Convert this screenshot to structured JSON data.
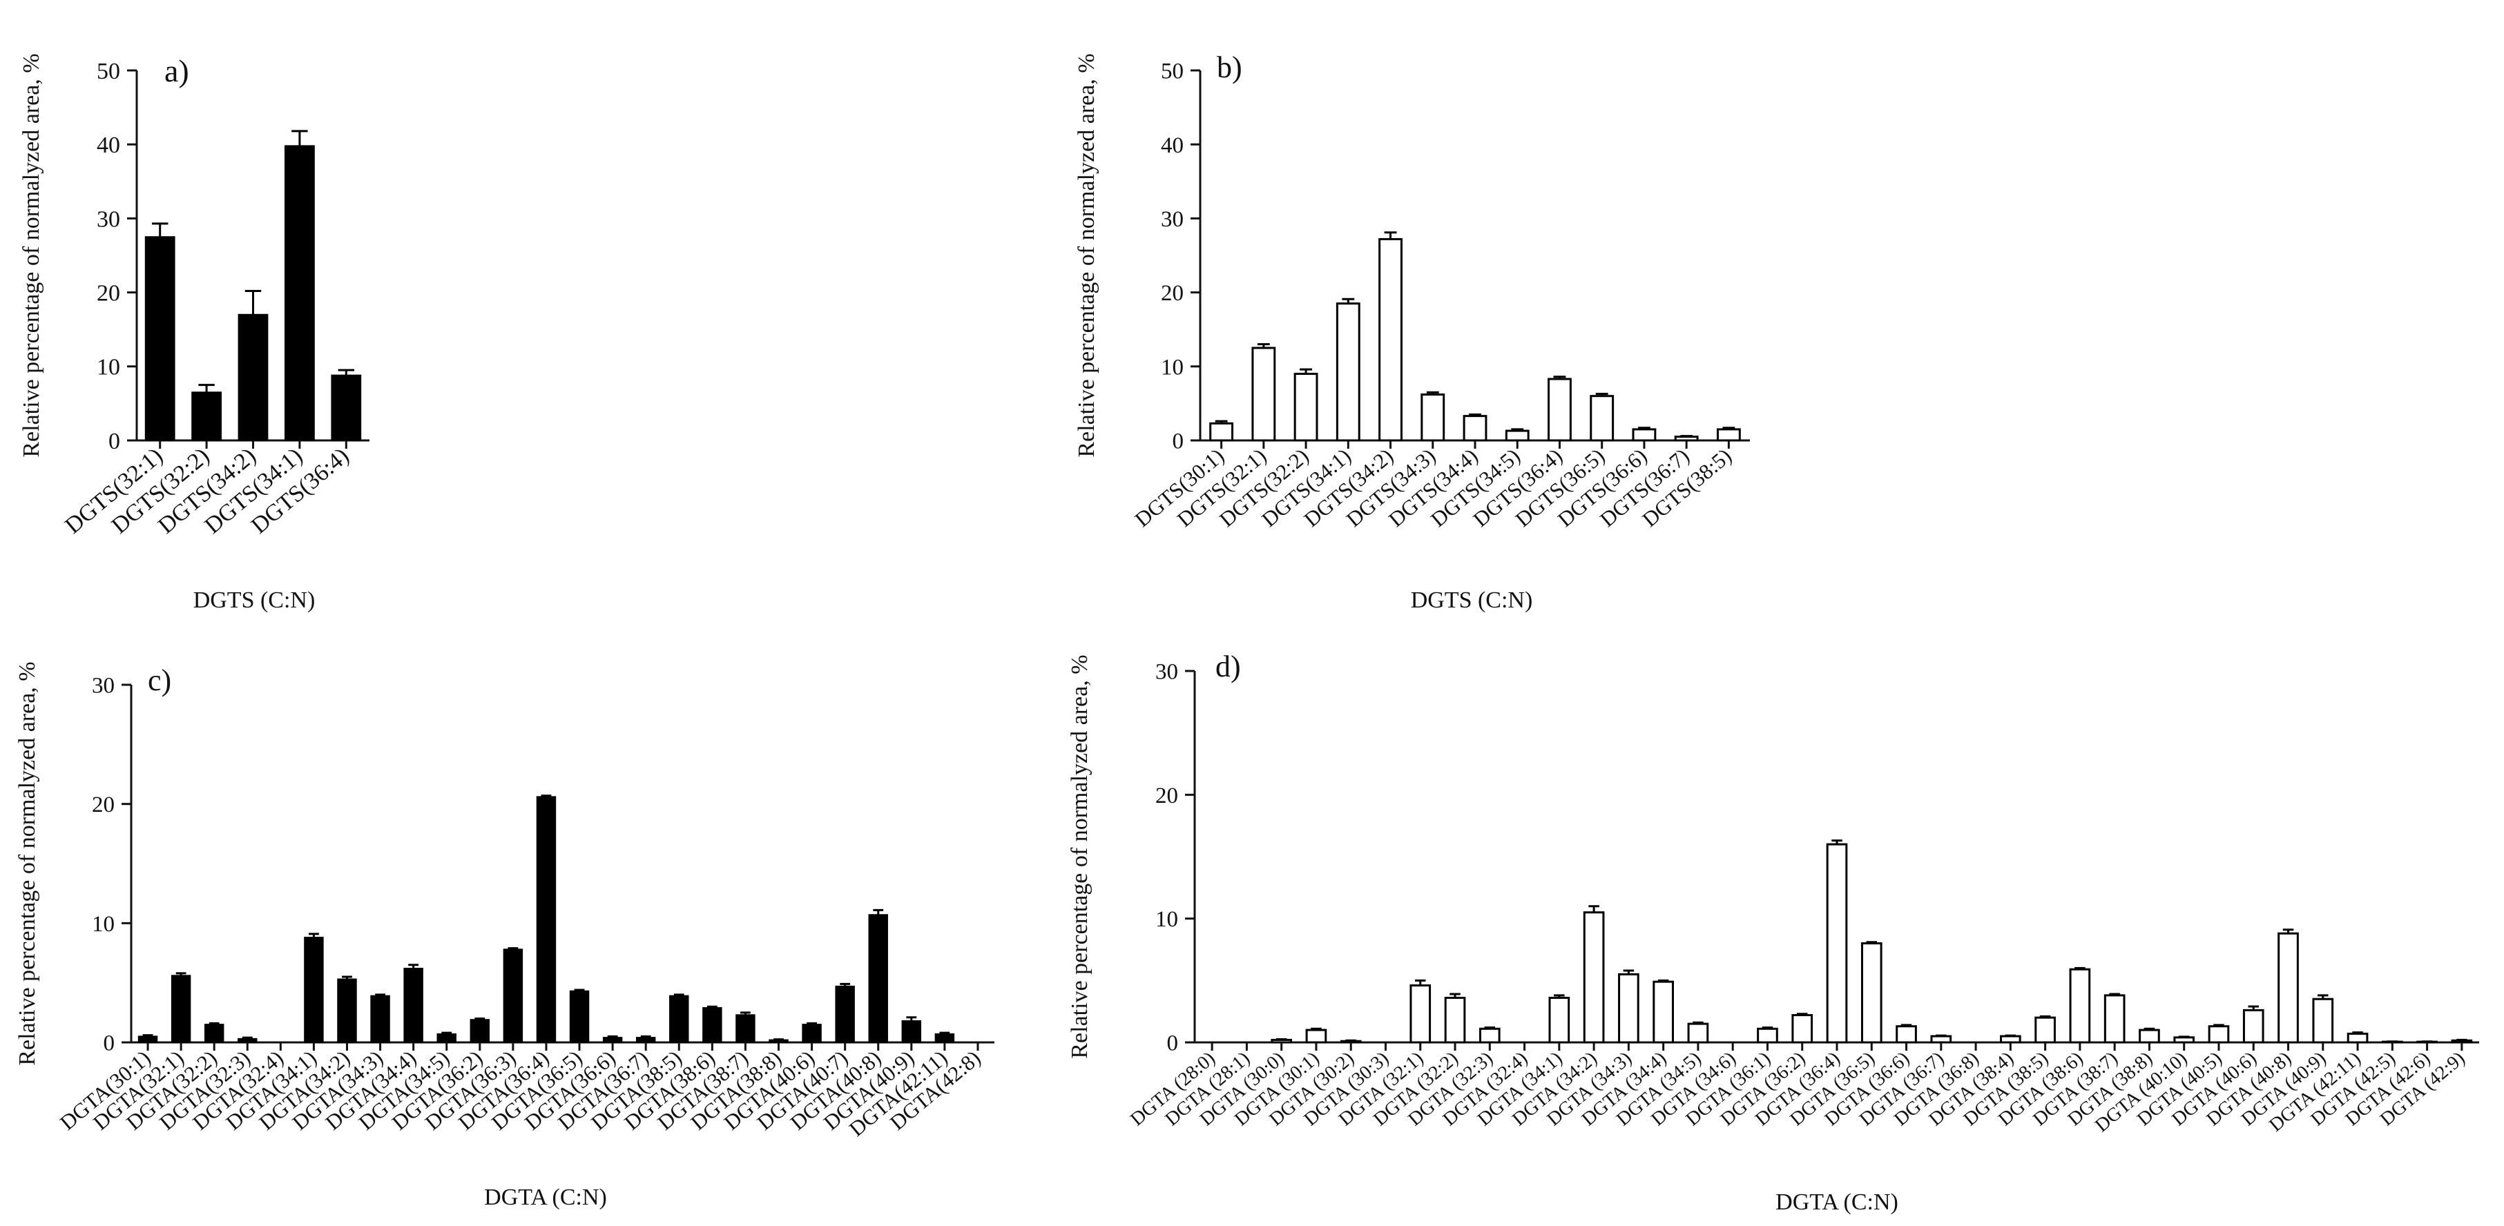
{
  "chart_data": [
    {
      "panel_label": "a)",
      "type": "bar",
      "fill": "#000000",
      "title": "",
      "xlabel": "DGTS (C:N)",
      "ylabel": "Relative percentage of normalyzed area, %",
      "ylim": [
        0,
        50
      ],
      "yticks": [
        "0",
        "10",
        "20",
        "30",
        "40",
        "50"
      ],
      "categories": [
        "DGTS(32:1)",
        "DGTS(32:2)",
        "DGTS(34:2)",
        "DGTS(34:1)",
        "DGTS(36:4)"
      ],
      "values": [
        27.5,
        6.5,
        17,
        39.8,
        8.8
      ],
      "errors": [
        1.8,
        1.0,
        3.2,
        2.0,
        0.7
      ]
    },
    {
      "panel_label": "b)",
      "type": "bar",
      "fill": "#ffffff",
      "title": "",
      "xlabel": "DGTS (C:N)",
      "ylabel": "Relative percentage of normalyzed area, %",
      "ylim": [
        0,
        50
      ],
      "yticks": [
        "0",
        "10",
        "20",
        "30",
        "40",
        "50"
      ],
      "categories": [
        "DGTS(30:1)",
        "DGTS(32:1)",
        "DGTS(32:2)",
        "DGTS(34:1)",
        "DGTS(34:2)",
        "DGTS(34:3)",
        "DGTS(34:4)",
        "DGTS(34:5)",
        "DGTS(36:4)",
        "DGTS(36:5)",
        "DGTS(36:6)",
        "DGTS(36:7)",
        "DGTS(38:5)"
      ],
      "values": [
        2.3,
        12.5,
        9.0,
        18.5,
        27.2,
        6.2,
        3.3,
        1.3,
        8.3,
        6.0,
        1.5,
        0.5,
        1.5
      ],
      "errors": [
        0.3,
        0.5,
        0.6,
        0.6,
        0.9,
        0.3,
        0.2,
        0.2,
        0.3,
        0.3,
        0.2,
        0.1,
        0.2
      ]
    },
    {
      "panel_label": "c)",
      "type": "bar",
      "fill": "#000000",
      "title": "",
      "xlabel": "DGTA (C:N)",
      "ylabel": "Relative percentage of normalyzed area, %",
      "ylim": [
        0,
        30
      ],
      "yticks": [
        "0",
        "10",
        "20",
        "30"
      ],
      "categories": [
        "DGTA(30:1)",
        "DGTA(32:1)",
        "DGTA(32:2)",
        "DGTA(32:3)",
        "DGTA(32:4)",
        "DGTA(34:1)",
        "DGTA(34:2)",
        "DGTA(34:3)",
        "DGTA(34:4)",
        "DGTA(34:5)",
        "DGTA(36:2)",
        "DGTA(36:3)",
        "DGTA(36:4)",
        "DGTA(36:5)",
        "DGTA(36:6)",
        "DGTA(36:7)",
        "DGTA(38:5)",
        "DGTA(38:6)",
        "DGTA(38:7)",
        "DGTA(38:8)",
        "DGTA(40:6)",
        "DGTA(40:7)",
        "DGTA(40:8)",
        "DGTA(40:9)",
        "DGTA(42:11)",
        "DGTA(42:8)"
      ],
      "values": [
        0.5,
        5.6,
        1.5,
        0.3,
        0,
        8.8,
        5.3,
        3.9,
        6.2,
        0.7,
        1.9,
        7.8,
        20.6,
        4.3,
        0.4,
        0.4,
        3.9,
        2.9,
        2.3,
        0.2,
        1.5,
        4.7,
        10.7,
        1.8,
        0.7,
        0
      ],
      "errors": [
        0.1,
        0.2,
        0.1,
        0.1,
        0,
        0.3,
        0.2,
        0.1,
        0.3,
        0.1,
        0.1,
        0.1,
        0.1,
        0.1,
        0.1,
        0.1,
        0.1,
        0.1,
        0.2,
        0.05,
        0.1,
        0.2,
        0.4,
        0.3,
        0.1,
        0
      ]
    },
    {
      "panel_label": "d)",
      "type": "bar",
      "fill": "#ffffff",
      "title": "",
      "xlabel": "DGTA (C:N)",
      "ylabel": "Relative percentage of normalyzed area, %",
      "ylim": [
        0,
        30
      ],
      "yticks": [
        "0",
        "10",
        "20",
        "30"
      ],
      "categories": [
        "DGTA (28:0)",
        "DGTA (28:1)",
        "DGTA (30:0)",
        "DGTA (30:1)",
        "DGTA (30:2)",
        "DGTA (30:3)",
        "DGTA (32:1)",
        "DGTA (32:2)",
        "DGTA (32:3)",
        "DGTA (32:4)",
        "DGTA (34:1)",
        "DGTA (34:2)",
        "DGTA (34:3)",
        "DGTA (34:4)",
        "DGTA (34:5)",
        "DGTA (34:6)",
        "DGTA (36:1)",
        "DGTA (36:2)",
        "DGTA (36:4)",
        "DGTA (36:5)",
        "DGTA (36:6)",
        "DGTA (36:7)",
        "DGTA (36:8)",
        "DGTA (38:4)",
        "DGTA (38:5)",
        "DGTA (38:6)",
        "DGTA (38:7)",
        "DGTA (38:8)",
        "DGTA (40:10)",
        "DGTA (40:5)",
        "DGTA (40:6)",
        "DGTA (40:8)",
        "DGTA (40:9)",
        "DGTA (42:11)",
        "DGTA (42:5)",
        "DGTA (42:6)",
        "DGTA (42:9)"
      ],
      "values": [
        0,
        0,
        0.2,
        1.0,
        0.1,
        0,
        4.6,
        3.6,
        1.1,
        0,
        3.6,
        10.5,
        5.5,
        4.9,
        1.5,
        0,
        1.1,
        2.2,
        16.0,
        8.0,
        1.3,
        0.5,
        0,
        0.5,
        2.0,
        5.9,
        3.8,
        1.0,
        0.4,
        1.3,
        2.6,
        8.8,
        3.5,
        0.7,
        0.05,
        0.05,
        0.15
      ],
      "errors": [
        0,
        0,
        0.05,
        0.1,
        0.05,
        0,
        0.4,
        0.3,
        0.1,
        0,
        0.2,
        0.5,
        0.3,
        0.1,
        0.1,
        0,
        0.1,
        0.1,
        0.3,
        0.1,
        0.1,
        0.05,
        0,
        0.05,
        0.1,
        0.1,
        0.1,
        0.1,
        0.05,
        0.1,
        0.3,
        0.3,
        0.3,
        0.1,
        0.02,
        0.02,
        0.05
      ]
    }
  ]
}
